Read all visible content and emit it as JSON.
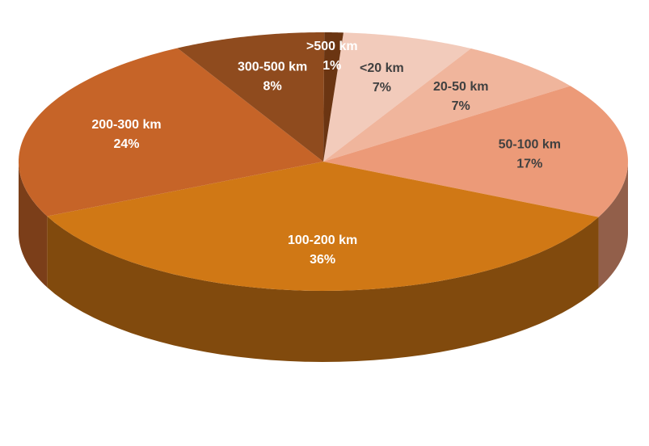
{
  "chart_data": {
    "type": "pie3d",
    "categories": [
      "<20 km",
      "20-50 km",
      "50-100 km",
      "100-200 km",
      "200-300 km",
      "300-500 km",
      ">500 km"
    ],
    "values": [
      7,
      7,
      17,
      36,
      24,
      8,
      1
    ],
    "value_labels": [
      "7%",
      "7%",
      "17%",
      "36%",
      "24%",
      "8%",
      "1%"
    ],
    "colors": [
      "#f2cbbb",
      "#f0b59c",
      "#ec9a78",
      "#d07815",
      "#c66428",
      "#8f4b1e",
      "#6b3512"
    ],
    "label_colors": [
      "#404040",
      "#404040",
      "#404040",
      "#ffffff",
      "#ffffff",
      "#ffffff",
      "#ffffff"
    ]
  }
}
